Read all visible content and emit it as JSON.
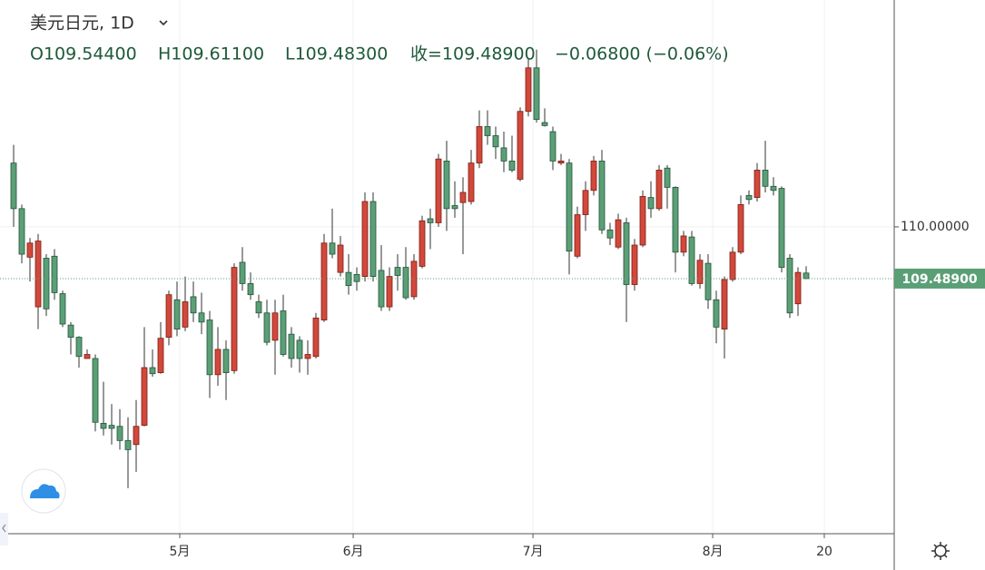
{
  "chart_data": {
    "type": "candlestick",
    "title": "美元日元, 1D",
    "legend": [
      "O109.54400",
      "H109.61100",
      "L109.48300",
      "收=109.48900",
      "−0.06800 (−0.06%)"
    ],
    "up_color": "#d2483a",
    "down_color": "#5b9f76",
    "grid": true,
    "x": [
      0,
      1,
      2,
      3,
      4,
      5,
      6,
      7,
      8,
      9,
      10,
      11,
      12,
      13,
      14,
      15,
      16,
      17,
      18,
      19,
      20,
      21,
      22,
      23,
      24,
      25,
      26,
      27,
      28,
      29,
      30,
      31,
      32,
      33,
      34,
      35,
      36,
      37,
      38,
      39,
      40,
      41,
      42,
      43,
      44,
      45,
      46,
      47,
      48,
      49,
      50,
      51,
      52,
      53,
      54,
      55,
      56,
      57,
      58,
      59,
      60,
      61,
      62,
      63,
      64,
      65,
      66,
      67,
      68,
      69,
      70,
      71,
      72,
      73,
      74,
      75,
      76,
      77,
      78,
      79,
      80,
      81,
      82,
      83,
      84,
      85,
      86,
      87,
      88,
      89,
      90,
      91,
      92,
      93,
      94,
      95,
      96,
      97
    ],
    "open": [
      110.63,
      110.18,
      109.7,
      109.21,
      109.69,
      109.71,
      109.34,
      109.03,
      108.91,
      108.7,
      108.7,
      108.06,
      108.04,
      108.03,
      107.89,
      107.85,
      108.04,
      108.61,
      108.56,
      108.91,
      109.28,
      109.01,
      109.31,
      109.15,
      109.08,
      108.54,
      108.79,
      108.58,
      109.65,
      109.44,
      109.26,
      109.15,
      108.88,
      109.17,
      108.94,
      108.88,
      108.7,
      108.72,
      109.08,
      109.84,
      109.55,
      109.55,
      109.53,
      109.51,
      110.25,
      109.57,
      109.21,
      109.6,
      109.6,
      109.31,
      109.61,
      110.08,
      110.04,
      110.65,
      110.21,
      110.24,
      110.25,
      110.63,
      110.99,
      110.9,
      110.78,
      110.65,
      110.47,
      111.14,
      111.57,
      111.03,
      110.94,
      110.63,
      110.63,
      109.71,
      110.12,
      110.36,
      110.65,
      109.97,
      109.8,
      110.04,
      109.43,
      109.82,
      110.29,
      110.18,
      110.58,
      110.39,
      109.75,
      109.9,
      109.44,
      109.64,
      109.28,
      108.99,
      109.48,
      109.75,
      110.31,
      110.29,
      110.56,
      110.4,
      110.38,
      109.69,
      109.24,
      109.544
    ],
    "high": [
      110.81,
      110.22,
      109.89,
      109.93,
      109.73,
      109.78,
      109.37,
      109.06,
      108.92,
      108.79,
      108.74,
      108.47,
      108.25,
      108.2,
      108.12,
      108.29,
      109.01,
      108.79,
      109.06,
      109.37,
      109.46,
      109.51,
      109.46,
      109.35,
      109.17,
      109.01,
      108.88,
      109.64,
      109.8,
      109.55,
      109.33,
      109.28,
      109.28,
      109.33,
      109.01,
      108.92,
      108.88,
      109.15,
      109.93,
      110.18,
      109.91,
      109.73,
      109.6,
      110.34,
      110.34,
      109.82,
      109.6,
      109.73,
      109.8,
      109.73,
      110.11,
      110.18,
      110.72,
      110.85,
      110.45,
      110.49,
      110.76,
      111.15,
      111.15,
      110.99,
      110.94,
      110.9,
      111.18,
      111.66,
      111.75,
      111.17,
      110.99,
      110.72,
      110.67,
      110.2,
      110.45,
      110.7,
      110.76,
      110.04,
      110.13,
      110.09,
      109.88,
      110.36,
      110.45,
      110.61,
      110.61,
      110.4,
      109.96,
      109.96,
      109.73,
      109.73,
      109.37,
      109.51,
      109.8,
      110.31,
      110.36,
      110.63,
      110.85,
      110.49,
      110.4,
      109.73,
      109.6,
      109.611
    ],
    "low": [
      110.0,
      109.64,
      109.46,
      108.99,
      109.12,
      109.28,
      109.01,
      108.74,
      108.61,
      108.7,
      107.98,
      107.94,
      107.85,
      107.8,
      107.42,
      107.58,
      108.03,
      108.52,
      108.55,
      108.83,
      108.92,
      108.97,
      109.06,
      108.94,
      108.31,
      108.43,
      108.29,
      108.55,
      109.37,
      109.28,
      109.1,
      108.83,
      108.54,
      108.72,
      108.61,
      108.56,
      108.54,
      108.7,
      109.06,
      109.69,
      109.51,
      109.33,
      109.37,
      109.46,
      109.46,
      109.17,
      109.17,
      109.37,
      109.28,
      109.28,
      109.59,
      109.78,
      110.0,
      109.96,
      110.09,
      109.73,
      110.22,
      110.58,
      110.81,
      110.67,
      110.54,
      110.54,
      110.45,
      111.09,
      111.03,
      110.99,
      110.56,
      110.61,
      109.53,
      109.69,
      109.96,
      110.31,
      109.93,
      109.82,
      109.78,
      109.06,
      109.37,
      109.8,
      110.09,
      110.16,
      110.18,
      109.55,
      109.71,
      109.42,
      109.39,
      109.19,
      108.85,
      108.7,
      109.46,
      109.73,
      110.22,
      110.25,
      110.34,
      110.31,
      109.55,
      109.1,
      109.12,
      109.483
    ],
    "close": [
      110.18,
      109.73,
      109.84,
      109.86,
      109.19,
      109.35,
      109.04,
      108.91,
      108.72,
      108.74,
      108.07,
      108.01,
      108.01,
      107.89,
      107.8,
      108.03,
      108.61,
      108.55,
      108.9,
      109.33,
      108.99,
      109.26,
      109.15,
      109.06,
      108.54,
      108.79,
      108.56,
      109.6,
      109.44,
      109.33,
      109.15,
      108.86,
      109.15,
      108.74,
      108.7,
      108.7,
      108.74,
      109.1,
      109.84,
      109.73,
      109.82,
      109.42,
      109.46,
      110.25,
      109.51,
      109.21,
      109.51,
      109.52,
      109.3,
      109.66,
      110.06,
      110.04,
      110.67,
      110.18,
      110.18,
      110.34,
      110.63,
      110.99,
      110.9,
      110.79,
      110.65,
      110.56,
      111.14,
      111.57,
      111.06,
      111.0,
      110.65,
      110.65,
      109.76,
      110.12,
      110.36,
      110.65,
      109.97,
      109.89,
      110.07,
      109.43,
      109.82,
      110.3,
      110.18,
      110.56,
      110.39,
      109.75,
      109.91,
      109.44,
      109.67,
      109.28,
      109.01,
      109.48,
      109.75,
      110.22,
      110.27,
      110.56,
      110.4,
      110.36,
      109.6,
      109.15,
      109.55,
      109.489
    ],
    "last_price": {
      "value": 109.489,
      "label": "109.48900"
    },
    "xlim": [
      -1.667,
      107.778
    ],
    "xticks": [
      {
        "value": 20.33,
        "label": "5月"
      },
      {
        "value": 41.56,
        "label": "6月"
      },
      {
        "value": 63.56,
        "label": "7月"
      },
      {
        "value": 85.56,
        "label": "8月"
      },
      {
        "value": 99.22,
        "label": "20"
      }
    ],
    "ylim": [
      106.97,
      112.24
    ],
    "yticks": [
      {
        "value": 110,
        "label": "110.00000"
      }
    ]
  }
}
